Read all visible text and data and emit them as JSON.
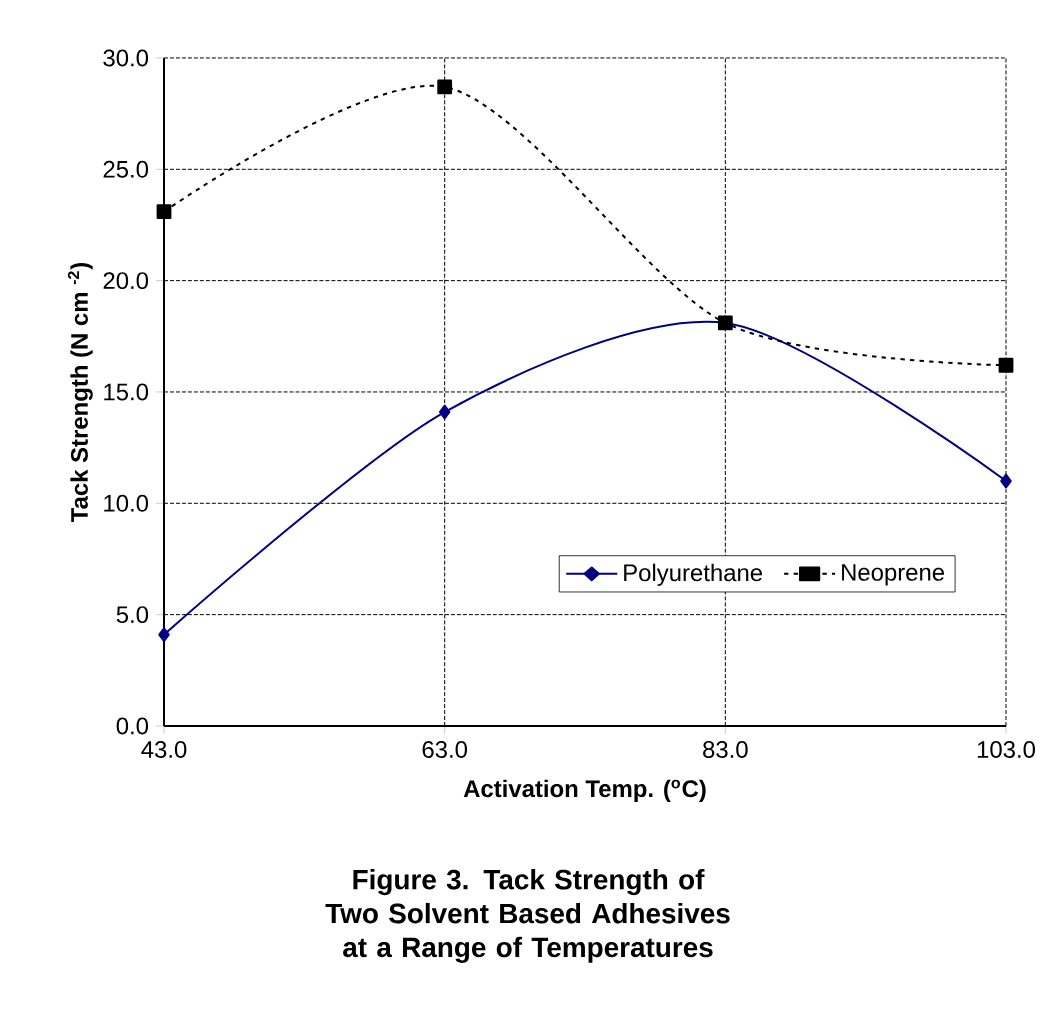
{
  "chart_data": {
    "type": "line",
    "xlabel": "Activation Temp. ($^{o}$C)",
    "ylabel": "Tack Strength (N cm $^{-2}$)",
    "annotations": [
      "Figure 3.  Tack Strength of Two Solvent Based Adhesives at a Range of Temperatures"
    ],
    "x": [
      43,
      63,
      83,
      103
    ],
    "series": [
      {
        "name": "Polyurethane",
        "color": "#000080",
        "values": [
          4.1,
          14.1,
          18.1,
          11.0
        ],
        "marker": "diamond",
        "line_style": "solid"
      },
      {
        "name": "Neoprene",
        "color": "#000000",
        "values": [
          23.1,
          28.7,
          18.1,
          16.2
        ],
        "marker": "square",
        "line_style": "dashed"
      }
    ],
    "xlim": [
      43,
      103
    ],
    "xticks": [
      {
        "value": 43,
        "label": "43.0"
      },
      {
        "value": 63,
        "label": "63.0"
      },
      {
        "value": 83,
        "label": "83.0"
      },
      {
        "value": 103,
        "label": "103.0"
      }
    ],
    "ylim": [
      0,
      30
    ],
    "yticks": [
      {
        "value": 0,
        "label": "0.0"
      },
      {
        "value": 5,
        "label": "5.0"
      },
      {
        "value": 10,
        "label": "10.0"
      },
      {
        "value": 15,
        "label": "15.0"
      },
      {
        "value": 20,
        "label": "20.0"
      },
      {
        "value": 25,
        "label": "25.0"
      },
      {
        "value": 30,
        "label": "30.0"
      }
    ],
    "grid": true,
    "legend": "bottom right"
  }
}
